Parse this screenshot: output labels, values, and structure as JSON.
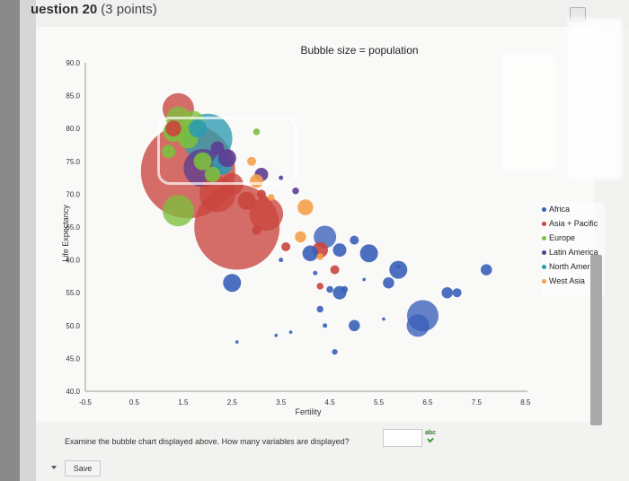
{
  "question": {
    "title": "uestion 20",
    "points": "(3 points)",
    "prompt": "Examine the bubble chart displayed above. How many variables are displayed?",
    "answer_value": "",
    "save_label": "Save",
    "spell_label": "abc"
  },
  "legend": {
    "items": [
      {
        "label": "Africa",
        "color": "#3a5fb8"
      },
      {
        "label": "Asia + Pacific",
        "color": "#c9453d"
      },
      {
        "label": "Europe",
        "color": "#7cbf3e"
      },
      {
        "label": "Latin America",
        "color": "#5c3c93"
      },
      {
        "label": "North America",
        "color": "#2d9bb0"
      },
      {
        "label": "West Asia",
        "color": "#f5a04a"
      }
    ]
  },
  "chart_data": {
    "type": "scatter",
    "title": "Bubble size = population",
    "xlabel": "Fertility",
    "ylabel": "Life Expectancy",
    "xlim": [
      -0.5,
      9.0
    ],
    "ylim": [
      40.0,
      90.0
    ],
    "x_ticks": [
      "-0.5",
      "0.5",
      "1.5",
      "2.5",
      "3.5",
      "4.5",
      "5.5",
      "6.5",
      "7.5",
      "8.5"
    ],
    "y_ticks": [
      "40.0",
      "45.0",
      "50.0",
      "55.0",
      "60.0",
      "65.0",
      "70.0",
      "75.0",
      "80.0",
      "85.0",
      "90.0"
    ],
    "series": [
      {
        "name": "Asia + Pacific",
        "color": "#c9453d",
        "points": [
          {
            "x": 1.6,
            "y": 73.5,
            "size": 42
          },
          {
            "x": 2.6,
            "y": 65.0,
            "size": 38
          },
          {
            "x": 1.4,
            "y": 83.0,
            "size": 14
          },
          {
            "x": 2.2,
            "y": 70.0,
            "size": 16
          },
          {
            "x": 3.2,
            "y": 67.0,
            "size": 15
          },
          {
            "x": 2.5,
            "y": 71.5,
            "size": 10
          },
          {
            "x": 1.3,
            "y": 80.0,
            "size": 7
          },
          {
            "x": 2.8,
            "y": 69.0,
            "size": 8
          },
          {
            "x": 4.3,
            "y": 61.5,
            "size": 7
          },
          {
            "x": 3.6,
            "y": 62.0,
            "size": 4
          },
          {
            "x": 3.1,
            "y": 70.0,
            "size": 4
          },
          {
            "x": 4.6,
            "y": 58.5,
            "size": 4
          },
          {
            "x": 4.3,
            "y": 56.0,
            "size": 3
          },
          {
            "x": 3.0,
            "y": 64.5,
            "size": 4
          }
        ]
      },
      {
        "name": "Europe",
        "color": "#7cbf3e",
        "points": [
          {
            "x": 1.4,
            "y": 81.5,
            "size": 11
          },
          {
            "x": 1.7,
            "y": 81.0,
            "size": 10
          },
          {
            "x": 1.3,
            "y": 79.5,
            "size": 9
          },
          {
            "x": 1.6,
            "y": 78.5,
            "size": 9
          },
          {
            "x": 1.4,
            "y": 67.5,
            "size": 14
          },
          {
            "x": 1.9,
            "y": 75.0,
            "size": 8
          },
          {
            "x": 1.2,
            "y": 76.5,
            "size": 6
          },
          {
            "x": 2.1,
            "y": 73.0,
            "size": 7
          },
          {
            "x": 3.0,
            "y": 79.5,
            "size": 3
          }
        ]
      },
      {
        "name": "North America",
        "color": "#2d9bb0",
        "points": [
          {
            "x": 2.0,
            "y": 78.5,
            "size": 22
          },
          {
            "x": 2.3,
            "y": 74.5,
            "size": 9
          },
          {
            "x": 1.8,
            "y": 80.0,
            "size": 8
          }
        ]
      },
      {
        "name": "Latin America",
        "color": "#5c3c93",
        "points": [
          {
            "x": 1.9,
            "y": 74.0,
            "size": 17
          },
          {
            "x": 2.4,
            "y": 75.5,
            "size": 8
          },
          {
            "x": 3.1,
            "y": 73.0,
            "size": 6
          },
          {
            "x": 2.2,
            "y": 77.0,
            "size": 6
          },
          {
            "x": 3.8,
            "y": 70.5,
            "size": 3
          },
          {
            "x": 3.5,
            "y": 72.5,
            "size": 2
          }
        ]
      },
      {
        "name": "West Asia",
        "color": "#f5a04a",
        "points": [
          {
            "x": 3.0,
            "y": 72.0,
            "size": 6
          },
          {
            "x": 4.0,
            "y": 68.0,
            "size": 7
          },
          {
            "x": 3.9,
            "y": 63.5,
            "size": 5
          },
          {
            "x": 2.9,
            "y": 75.0,
            "size": 4
          },
          {
            "x": 3.3,
            "y": 69.5,
            "size": 3
          },
          {
            "x": 4.3,
            "y": 60.5,
            "size": 3
          }
        ]
      },
      {
        "name": "Africa",
        "color": "#3a5fb8",
        "points": [
          {
            "x": 2.5,
            "y": 56.5,
            "size": 8
          },
          {
            "x": 4.4,
            "y": 63.5,
            "size": 10
          },
          {
            "x": 4.1,
            "y": 61.0,
            "size": 7
          },
          {
            "x": 5.3,
            "y": 61.0,
            "size": 8
          },
          {
            "x": 6.4,
            "y": 51.5,
            "size": 14
          },
          {
            "x": 6.3,
            "y": 50.0,
            "size": 10
          },
          {
            "x": 5.9,
            "y": 58.5,
            "size": 8
          },
          {
            "x": 7.7,
            "y": 58.5,
            "size": 5
          },
          {
            "x": 6.9,
            "y": 55.0,
            "size": 5
          },
          {
            "x": 7.1,
            "y": 55.0,
            "size": 4
          },
          {
            "x": 4.7,
            "y": 61.5,
            "size": 6
          },
          {
            "x": 5.0,
            "y": 63.0,
            "size": 4
          },
          {
            "x": 4.7,
            "y": 55.0,
            "size": 6
          },
          {
            "x": 5.7,
            "y": 56.5,
            "size": 5
          },
          {
            "x": 5.0,
            "y": 50.0,
            "size": 5
          },
          {
            "x": 4.3,
            "y": 52.5,
            "size": 3
          },
          {
            "x": 4.8,
            "y": 55.5,
            "size": 3
          },
          {
            "x": 4.5,
            "y": 55.5,
            "size": 3
          },
          {
            "x": 3.5,
            "y": 60.0,
            "size": 2
          },
          {
            "x": 3.4,
            "y": 48.5,
            "size": 1.5
          },
          {
            "x": 2.6,
            "y": 47.5,
            "size": 1.5
          },
          {
            "x": 4.6,
            "y": 46.0,
            "size": 2.5
          },
          {
            "x": 4.4,
            "y": 50.0,
            "size": 2
          },
          {
            "x": 3.7,
            "y": 49.0,
            "size": 1.5
          },
          {
            "x": 5.6,
            "y": 51.0,
            "size": 1.5
          },
          {
            "x": 5.9,
            "y": 59.0,
            "size": 2
          },
          {
            "x": 5.2,
            "y": 57.0,
            "size": 1.5
          },
          {
            "x": 4.2,
            "y": 58.0,
            "size": 2
          }
        ]
      }
    ]
  }
}
